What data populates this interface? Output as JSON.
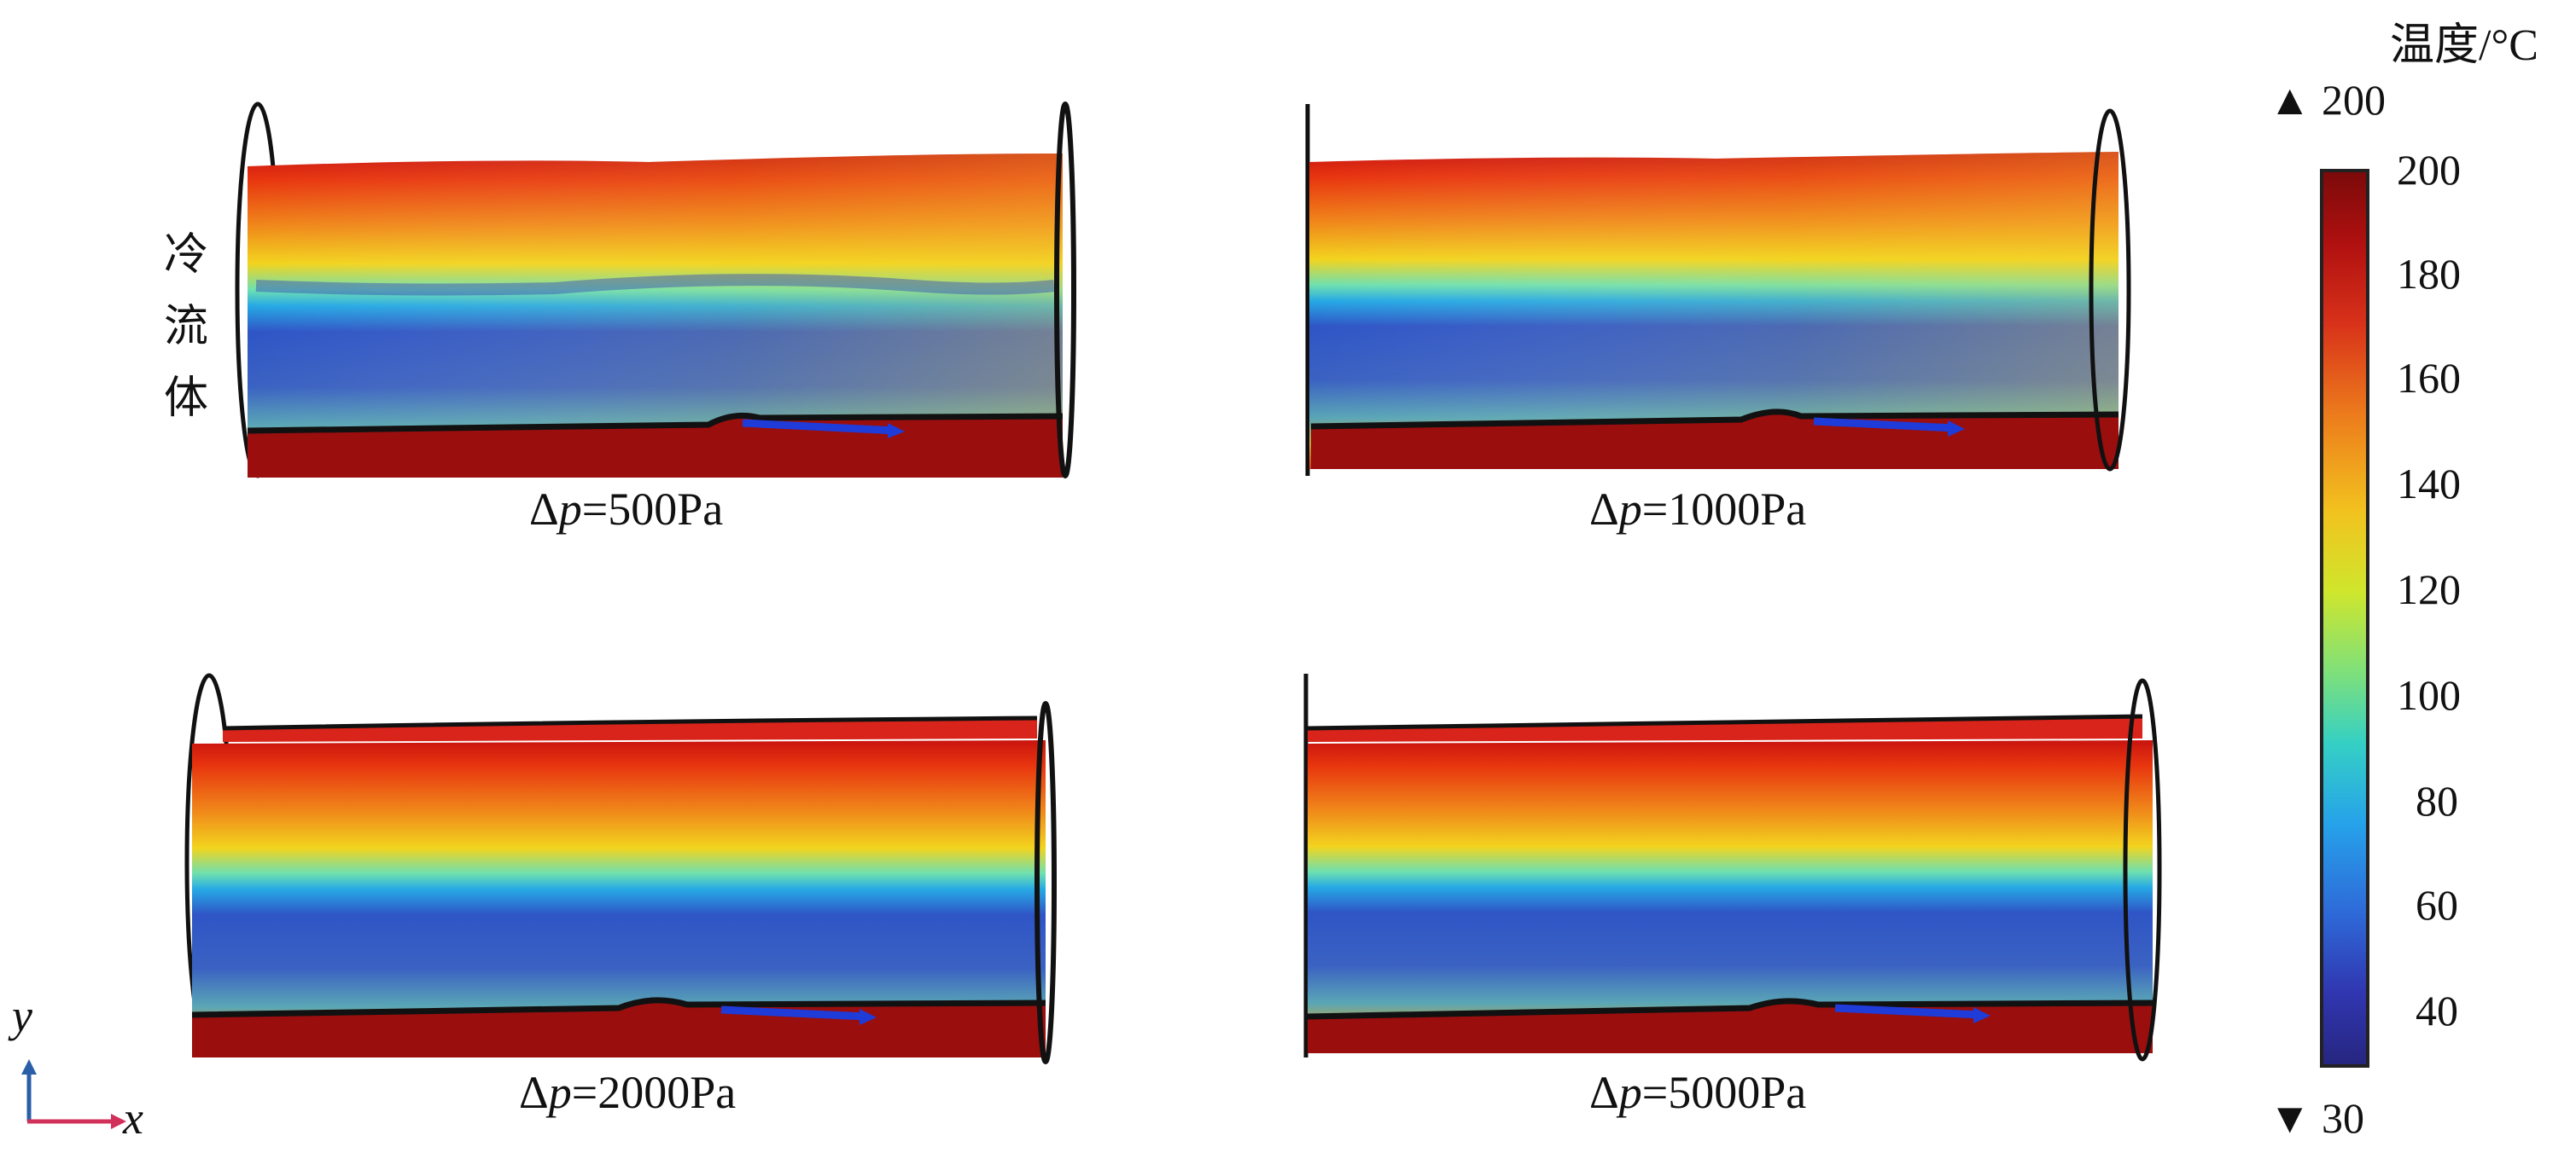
{
  "fluid_label": [
    "冷",
    "流",
    "体"
  ],
  "panels": [
    {
      "delta_symbol": "Δ",
      "var": "p",
      "value_text": "=500Pa"
    },
    {
      "delta_symbol": "Δ",
      "var": "p",
      "value_text": "=1000Pa"
    },
    {
      "delta_symbol": "Δ",
      "var": "p",
      "value_text": "=2000Pa"
    },
    {
      "delta_symbol": "Δ",
      "var": "p",
      "value_text": "=5000Pa"
    }
  ],
  "colorbar": {
    "title": "温度/°C",
    "max_marker": "▲ 200",
    "min_marker": "▼ 30",
    "ticks": [
      "200",
      "180",
      "160",
      "140",
      "120",
      "100",
      "80",
      "60",
      "40"
    ],
    "colors": [
      "#8b0a0a",
      "#c41e12",
      "#e84a14",
      "#f08a1c",
      "#f2c31e",
      "#d8e62a",
      "#8fe06a",
      "#3fd2b8",
      "#28a9e8",
      "#2f6fd8",
      "#2f3cb8",
      "#2a2a8c"
    ]
  },
  "axes": {
    "y": "y",
    "x": "x",
    "y_color": "#2a5fa8",
    "x_color": "#d0305a"
  }
}
